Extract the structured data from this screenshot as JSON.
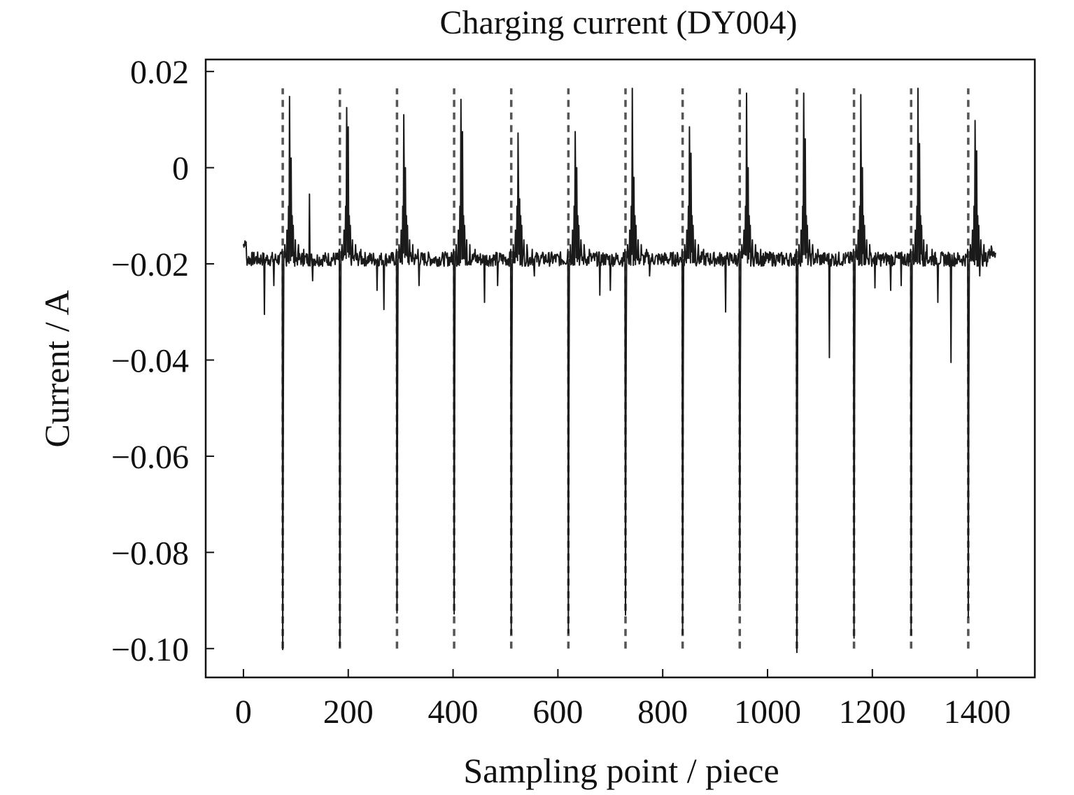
{
  "chart_data": {
    "type": "line",
    "title": "Charging current (DY004)",
    "xlabel": "Sampling point / piece",
    "ylabel": "Current / A",
    "xlim": [
      -72,
      1510
    ],
    "ylim": [
      -0.106,
      0.0225
    ],
    "x_ticks": [
      0,
      200,
      400,
      600,
      800,
      1000,
      1200,
      1400
    ],
    "x_tick_labels": [
      "0",
      "200",
      "400",
      "600",
      "800",
      "1000",
      "1200",
      "1400"
    ],
    "y_ticks": [
      0.02,
      0,
      -0.02,
      -0.04,
      -0.06,
      -0.08,
      -0.1
    ],
    "y_tick_labels": [
      "0.02",
      "0",
      "−0.02",
      "−0.04",
      "−0.06",
      "−0.08",
      "−0.10"
    ],
    "grid": false,
    "legend": "none",
    "marker_lines": {
      "style": "dashed",
      "color": "#555555",
      "x": [
        75,
        184,
        293,
        402,
        511,
        620,
        729,
        838,
        947,
        1056,
        1165,
        1274,
        1383
      ],
      "y_range": [
        -0.1,
        0.0165
      ]
    },
    "series": [
      {
        "color": "#1a1a1a",
        "baseline": -0.019,
        "x_range": [
          0,
          1435
        ],
        "events": [
          {
            "x": 75,
            "dip": -0.1002,
            "peak": 0.0148,
            "peak2": 0.002
          },
          {
            "x": 184,
            "dip": -0.0996,
            "peak": 0.0125,
            "peak2": 0.0085
          },
          {
            "x": 293,
            "dip": -0.0926,
            "peak": 0.011,
            "peak2": 0.0
          },
          {
            "x": 402,
            "dip": -0.0928,
            "peak": 0.0142,
            "peak2": 0.0075
          },
          {
            "x": 511,
            "dip": -0.097,
            "peak": 0.0072,
            "peak2": -0.0065
          },
          {
            "x": 620,
            "dip": -0.0968,
            "peak": 0.0075,
            "peak2": 0.0
          },
          {
            "x": 729,
            "dip": -0.093,
            "peak": 0.0165,
            "peak2": -0.002
          },
          {
            "x": 838,
            "dip": -0.097,
            "peak": 0.0085,
            "peak2": 0.003
          },
          {
            "x": 947,
            "dip": -0.0905,
            "peak": 0.0155,
            "peak2": 0.0
          },
          {
            "x": 1056,
            "dip": -0.1008,
            "peak": 0.0155,
            "peak2": 0.006
          },
          {
            "x": 1165,
            "dip": -0.0978,
            "peak": 0.0152,
            "peak2": 0.0
          },
          {
            "x": 1274,
            "dip": -0.0972,
            "peak": 0.0165,
            "peak2": 0.005
          },
          {
            "x": 1383,
            "dip": -0.0935,
            "peak": 0.0098,
            "peak2": 0.0035
          }
        ],
        "minor_spikes": [
          {
            "x": 40,
            "y": -0.0305
          },
          {
            "x": 58,
            "y": -0.0245
          },
          {
            "x": 126,
            "y": -0.0055
          },
          {
            "x": 132,
            "y": -0.0235
          },
          {
            "x": 255,
            "y": -0.0255
          },
          {
            "x": 268,
            "y": -0.0295
          },
          {
            "x": 335,
            "y": -0.0245
          },
          {
            "x": 460,
            "y": -0.028
          },
          {
            "x": 485,
            "y": -0.0245
          },
          {
            "x": 555,
            "y": -0.0225
          },
          {
            "x": 680,
            "y": -0.0265
          },
          {
            "x": 700,
            "y": -0.0255
          },
          {
            "x": 775,
            "y": -0.0225
          },
          {
            "x": 855,
            "y": -0.0175
          },
          {
            "x": 920,
            "y": -0.03
          },
          {
            "x": 1118,
            "y": -0.0395
          },
          {
            "x": 1205,
            "y": -0.025
          },
          {
            "x": 1235,
            "y": -0.0255
          },
          {
            "x": 1255,
            "y": -0.0245
          },
          {
            "x": 1325,
            "y": -0.028
          },
          {
            "x": 1350,
            "y": -0.0405
          },
          {
            "x": 1405,
            "y": -0.0225
          }
        ]
      }
    ]
  }
}
